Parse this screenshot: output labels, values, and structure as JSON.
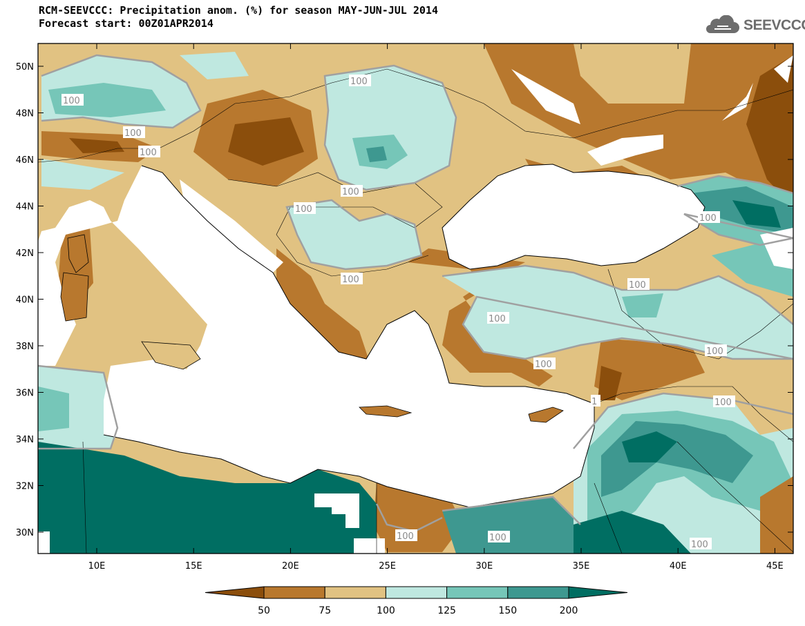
{
  "title_line1": "RCM-SEEVCCC: Precipitation anom. (%) for season MAY-JUN-JUL 2014",
  "title_line2": "Forecast start: 00Z01APR2014",
  "logo": {
    "text": "SEEVCCC",
    "icon": "cloud-logo-icon"
  },
  "map": {
    "lat_labels": [
      "50N",
      "48N",
      "46N",
      "44N",
      "42N",
      "40N",
      "38N",
      "36N",
      "34N",
      "32N",
      "30N"
    ],
    "lon_labels": [
      "10E",
      "15E",
      "20E",
      "25E",
      "30E",
      "35E",
      "40E",
      "45E"
    ],
    "contour_label": "100",
    "contour_label_count": 17
  },
  "colorbar": {
    "ticks": [
      "50",
      "75",
      "100",
      "125",
      "150",
      "200"
    ],
    "colors": [
      "#8b4e0c",
      "#b8782e",
      "#e1c282",
      "#bfe8e0",
      "#76c6b8",
      "#3e9890",
      "#006e62"
    ]
  },
  "colors": {
    "sea": "#ffffff",
    "coast": "#000000",
    "contour": "#a0a0a0"
  }
}
